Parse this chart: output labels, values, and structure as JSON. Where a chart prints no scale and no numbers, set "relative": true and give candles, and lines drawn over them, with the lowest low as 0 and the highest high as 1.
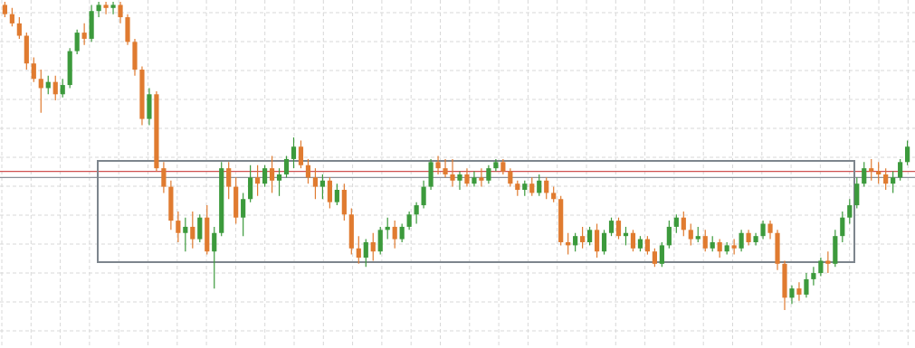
{
  "chart_data": {
    "type": "candlestick",
    "relative": true,
    "grid": true,
    "categories": [
      null,
      null,
      null,
      null,
      null,
      null,
      null,
      null,
      null,
      null,
      null,
      null,
      null,
      null,
      null,
      null,
      null,
      null,
      null,
      null,
      null,
      null,
      null,
      null,
      null,
      null,
      null,
      null,
      null,
      null,
      null,
      null,
      null,
      null,
      null,
      null,
      null,
      null,
      null,
      null,
      null,
      null,
      null,
      null,
      null,
      null,
      null,
      null,
      null,
      null,
      null,
      null,
      null,
      null,
      null,
      null,
      null,
      null,
      null,
      null,
      null,
      null,
      null,
      null,
      null,
      null,
      null,
      null,
      null,
      null,
      null,
      null,
      null,
      null,
      null,
      null,
      null,
      null,
      null,
      null,
      null,
      null,
      null,
      null,
      null,
      null,
      null,
      null,
      null,
      null,
      null,
      null,
      null,
      null,
      null,
      null,
      null,
      null,
      null,
      null,
      null,
      null,
      null,
      null,
      null,
      null,
      null,
      null,
      null,
      null,
      null,
      null,
      null,
      null,
      null,
      null,
      null,
      null,
      null,
      null,
      null,
      null,
      null,
      null,
      null,
      null
    ],
    "ohlc": [
      [
        0.99,
        1.0,
        0.95,
        0.96
      ],
      [
        0.96,
        0.98,
        0.92,
        0.93
      ],
      [
        0.93,
        0.95,
        0.88,
        0.89
      ],
      [
        0.89,
        0.9,
        0.78,
        0.8
      ],
      [
        0.8,
        0.82,
        0.74,
        0.75
      ],
      [
        0.75,
        0.78,
        0.64,
        0.72
      ],
      [
        0.72,
        0.76,
        0.7,
        0.74
      ],
      [
        0.74,
        0.76,
        0.68,
        0.7
      ],
      [
        0.7,
        0.75,
        0.69,
        0.73
      ],
      [
        0.73,
        0.85,
        0.72,
        0.84
      ],
      [
        0.84,
        0.91,
        0.83,
        0.9
      ],
      [
        0.9,
        0.93,
        0.86,
        0.88
      ],
      [
        0.88,
        0.99,
        0.87,
        0.97
      ],
      [
        0.97,
        1.0,
        0.95,
        0.99
      ],
      [
        0.99,
        1.0,
        0.96,
        0.98
      ],
      [
        0.98,
        1.0,
        0.96,
        0.99
      ],
      [
        0.99,
        1.0,
        0.93,
        0.95
      ],
      [
        0.95,
        0.96,
        0.86,
        0.87
      ],
      [
        0.87,
        0.88,
        0.76,
        0.78
      ],
      [
        0.78,
        0.79,
        0.6,
        0.62
      ],
      [
        0.62,
        0.72,
        0.6,
        0.7
      ],
      [
        0.7,
        0.71,
        0.45,
        0.46
      ],
      [
        0.46,
        0.48,
        0.38,
        0.4
      ],
      [
        0.4,
        0.42,
        0.26,
        0.29
      ],
      [
        0.29,
        0.32,
        0.22,
        0.25
      ],
      [
        0.25,
        0.3,
        0.19,
        0.27
      ],
      [
        0.27,
        0.32,
        0.2,
        0.23
      ],
      [
        0.23,
        0.31,
        0.22,
        0.3
      ],
      [
        0.3,
        0.34,
        0.18,
        0.19
      ],
      [
        0.19,
        0.27,
        0.07,
        0.25
      ],
      [
        0.25,
        0.48,
        0.24,
        0.46
      ],
      [
        0.46,
        0.48,
        0.36,
        0.4
      ],
      [
        0.4,
        0.43,
        0.28,
        0.3
      ],
      [
        0.3,
        0.38,
        0.24,
        0.36
      ],
      [
        0.36,
        0.47,
        0.35,
        0.43
      ],
      [
        0.43,
        0.47,
        0.37,
        0.41
      ],
      [
        0.41,
        0.47,
        0.4,
        0.46
      ],
      [
        0.46,
        0.5,
        0.38,
        0.42
      ],
      [
        0.42,
        0.46,
        0.37,
        0.44
      ],
      [
        0.44,
        0.5,
        0.43,
        0.49
      ],
      [
        0.49,
        0.56,
        0.46,
        0.53
      ],
      [
        0.53,
        0.55,
        0.46,
        0.47
      ],
      [
        0.47,
        0.49,
        0.41,
        0.43
      ],
      [
        0.43,
        0.46,
        0.36,
        0.4
      ],
      [
        0.4,
        0.44,
        0.36,
        0.42
      ],
      [
        0.42,
        0.43,
        0.33,
        0.35
      ],
      [
        0.35,
        0.41,
        0.34,
        0.39
      ],
      [
        0.39,
        0.41,
        0.29,
        0.31
      ],
      [
        0.31,
        0.33,
        0.18,
        0.2
      ],
      [
        0.2,
        0.24,
        0.15,
        0.17
      ],
      [
        0.17,
        0.23,
        0.14,
        0.22
      ],
      [
        0.22,
        0.25,
        0.16,
        0.19
      ],
      [
        0.19,
        0.27,
        0.18,
        0.26
      ],
      [
        0.26,
        0.3,
        0.23,
        0.27
      ],
      [
        0.27,
        0.29,
        0.2,
        0.23
      ],
      [
        0.23,
        0.28,
        0.22,
        0.27
      ],
      [
        0.27,
        0.32,
        0.26,
        0.31
      ],
      [
        0.31,
        0.35,
        0.28,
        0.34
      ],
      [
        0.34,
        0.42,
        0.33,
        0.4
      ],
      [
        0.4,
        0.49,
        0.39,
        0.48
      ],
      [
        0.48,
        0.5,
        0.44,
        0.46
      ],
      [
        0.46,
        0.49,
        0.43,
        0.44
      ],
      [
        0.44,
        0.49,
        0.4,
        0.42
      ],
      [
        0.42,
        0.45,
        0.39,
        0.44
      ],
      [
        0.44,
        0.46,
        0.4,
        0.41
      ],
      [
        0.41,
        0.45,
        0.4,
        0.43
      ],
      [
        0.43,
        0.46,
        0.4,
        0.42
      ],
      [
        0.42,
        0.47,
        0.41,
        0.46
      ],
      [
        0.46,
        0.49,
        0.45,
        0.48
      ],
      [
        0.48,
        0.49,
        0.44,
        0.45
      ],
      [
        0.45,
        0.46,
        0.4,
        0.41
      ],
      [
        0.41,
        0.42,
        0.37,
        0.39
      ],
      [
        0.39,
        0.42,
        0.37,
        0.41
      ],
      [
        0.41,
        0.43,
        0.37,
        0.38
      ],
      [
        0.38,
        0.44,
        0.37,
        0.42
      ],
      [
        0.42,
        0.43,
        0.36,
        0.38
      ],
      [
        0.38,
        0.4,
        0.35,
        0.36
      ],
      [
        0.36,
        0.37,
        0.21,
        0.22
      ],
      [
        0.22,
        0.25,
        0.18,
        0.21
      ],
      [
        0.21,
        0.25,
        0.19,
        0.24
      ],
      [
        0.24,
        0.27,
        0.2,
        0.22
      ],
      [
        0.22,
        0.27,
        0.21,
        0.26
      ],
      [
        0.26,
        0.28,
        0.17,
        0.19
      ],
      [
        0.19,
        0.26,
        0.18,
        0.25
      ],
      [
        0.25,
        0.3,
        0.24,
        0.29
      ],
      [
        0.29,
        0.3,
        0.23,
        0.24
      ],
      [
        0.24,
        0.27,
        0.21,
        0.25
      ],
      [
        0.25,
        0.26,
        0.19,
        0.2
      ],
      [
        0.2,
        0.24,
        0.19,
        0.23
      ],
      [
        0.23,
        0.24,
        0.18,
        0.19
      ],
      [
        0.19,
        0.2,
        0.14,
        0.15
      ],
      [
        0.15,
        0.22,
        0.14,
        0.21
      ],
      [
        0.21,
        0.29,
        0.2,
        0.27
      ],
      [
        0.27,
        0.31,
        0.25,
        0.3
      ],
      [
        0.3,
        0.32,
        0.24,
        0.26
      ],
      [
        0.26,
        0.28,
        0.21,
        0.23
      ],
      [
        0.23,
        0.27,
        0.22,
        0.24
      ],
      [
        0.24,
        0.26,
        0.19,
        0.2
      ],
      [
        0.2,
        0.24,
        0.19,
        0.22
      ],
      [
        0.22,
        0.23,
        0.17,
        0.19
      ],
      [
        0.19,
        0.22,
        0.18,
        0.21
      ],
      [
        0.21,
        0.23,
        0.18,
        0.2
      ],
      [
        0.2,
        0.26,
        0.19,
        0.25
      ],
      [
        0.25,
        0.26,
        0.21,
        0.22
      ],
      [
        0.22,
        0.25,
        0.21,
        0.24
      ],
      [
        0.24,
        0.29,
        0.23,
        0.28
      ],
      [
        0.28,
        0.29,
        0.23,
        0.25
      ],
      [
        0.25,
        0.26,
        0.13,
        0.15
      ],
      [
        0.15,
        0.16,
        0.0,
        0.04
      ],
      [
        0.04,
        0.08,
        0.02,
        0.07
      ],
      [
        0.07,
        0.09,
        0.03,
        0.05
      ],
      [
        0.05,
        0.12,
        0.04,
        0.1
      ],
      [
        0.1,
        0.14,
        0.08,
        0.12
      ],
      [
        0.12,
        0.17,
        0.11,
        0.16
      ],
      [
        0.16,
        0.19,
        0.12,
        0.15
      ],
      [
        0.15,
        0.26,
        0.14,
        0.24
      ],
      [
        0.24,
        0.32,
        0.22,
        0.3
      ],
      [
        0.3,
        0.36,
        0.28,
        0.34
      ],
      [
        0.34,
        0.43,
        0.33,
        0.41
      ],
      [
        0.41,
        0.48,
        0.4,
        0.46
      ],
      [
        0.46,
        0.49,
        0.42,
        0.45
      ],
      [
        0.45,
        0.48,
        0.41,
        0.44
      ],
      [
        0.44,
        0.46,
        0.39,
        0.41
      ],
      [
        0.41,
        0.45,
        0.38,
        0.43
      ],
      [
        0.43,
        0.49,
        0.42,
        0.48
      ],
      [
        0.48,
        0.55,
        0.47,
        0.53
      ]
    ],
    "ref_lines": [
      {
        "axis": "y",
        "value": 0.45,
        "color": "#d05050"
      },
      {
        "axis": "y",
        "value": 0.43,
        "color": "#8a9098"
      }
    ]
  }
}
